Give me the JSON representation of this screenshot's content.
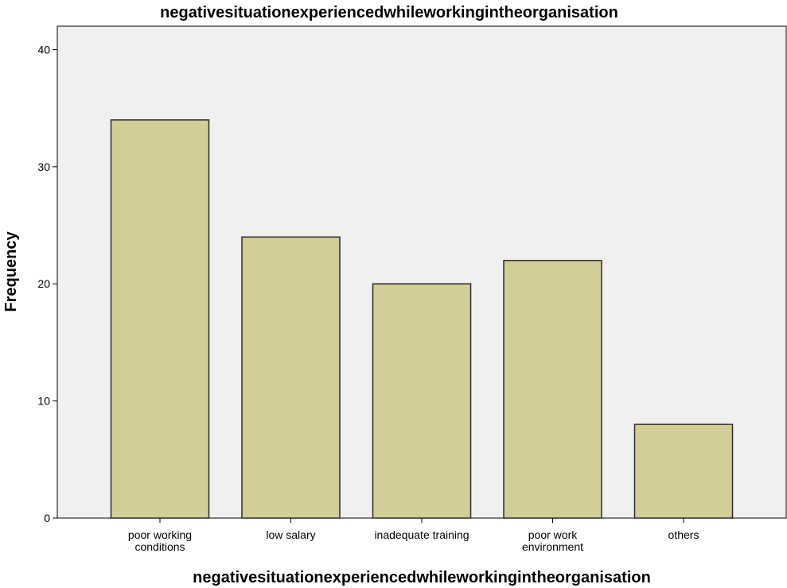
{
  "chart_data": {
    "type": "bar",
    "title": "negativesituationexperiencedwhileworkingintheorganisation",
    "xlabel": "negativesituationexperiencedwhileworkingintheorganisation",
    "ylabel": "Frequency",
    "categories": [
      [
        "poor working",
        "conditions"
      ],
      [
        "low salary"
      ],
      [
        "inadequate training"
      ],
      [
        "poor work",
        "environment"
      ],
      [
        "others"
      ]
    ],
    "values": [
      34,
      24,
      20,
      22,
      8
    ],
    "ylim": [
      0,
      42
    ],
    "yticks": [
      0,
      10,
      20,
      30,
      40
    ],
    "grid": false,
    "colors": {
      "plot_background": "#f0f0f0",
      "bar_fill": "#d3ce97",
      "bar_stroke": "#2b2b2b",
      "axis": "#000000"
    }
  }
}
